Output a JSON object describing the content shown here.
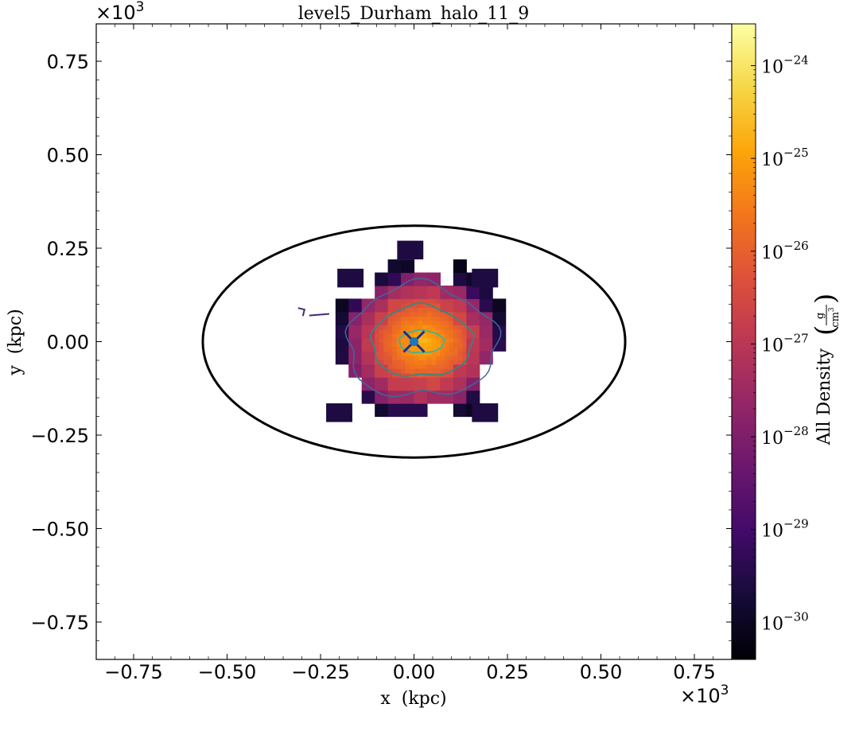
{
  "chart_data": {
    "type": "heatmap",
    "title": "level5_Durham_halo_11_9",
    "xlabel": "x  (kpc)",
    "ylabel": "y  (kpc)",
    "x_multiplier": "×10",
    "y_multiplier": "×10",
    "multiplier_exponent": "3",
    "xlim": [
      -0.85,
      0.85
    ],
    "ylim": [
      -0.85,
      0.85
    ],
    "xticks": [
      "−0.75",
      "−0.50",
      "−0.25",
      "0.00",
      "0.25",
      "0.50",
      "0.75"
    ],
    "yticks": [
      "−0.75",
      "−0.50",
      "−0.25",
      "0.00",
      "0.25",
      "0.50",
      "0.75"
    ],
    "xtick_values": [
      -0.75,
      -0.5,
      -0.25,
      0.0,
      0.25,
      0.5,
      0.75
    ],
    "ytick_values": [
      -0.75,
      -0.5,
      -0.25,
      0.0,
      0.25,
      0.5,
      0.75
    ],
    "colorbar": {
      "label": "All Density",
      "unit_numerator": "g",
      "unit_denominator": "cm",
      "unit_exponent": "3",
      "scale": "log",
      "colormap": "inferno",
      "range_log10": [
        -30.4,
        -23.55
      ],
      "tick_base": "10",
      "ticks": [
        {
          "exp": "−24",
          "value_log10": -24
        },
        {
          "exp": "−25",
          "value_log10": -25
        },
        {
          "exp": "−26",
          "value_log10": -26
        },
        {
          "exp": "−27",
          "value_log10": -27
        },
        {
          "exp": "−28",
          "value_log10": -28
        },
        {
          "exp": "−29",
          "value_log10": -29
        },
        {
          "exp": "−30",
          "value_log10": -30
        }
      ]
    },
    "ellipse": {
      "center": [
        0.0,
        0.0
      ],
      "semi_x": 0.565,
      "semi_y": 0.31,
      "color": "#000000"
    },
    "center_marker": {
      "position": [
        0.0,
        0.0
      ],
      "color": "#1f77b4"
    },
    "density_peak_log10": -24.6,
    "grid": false
  }
}
